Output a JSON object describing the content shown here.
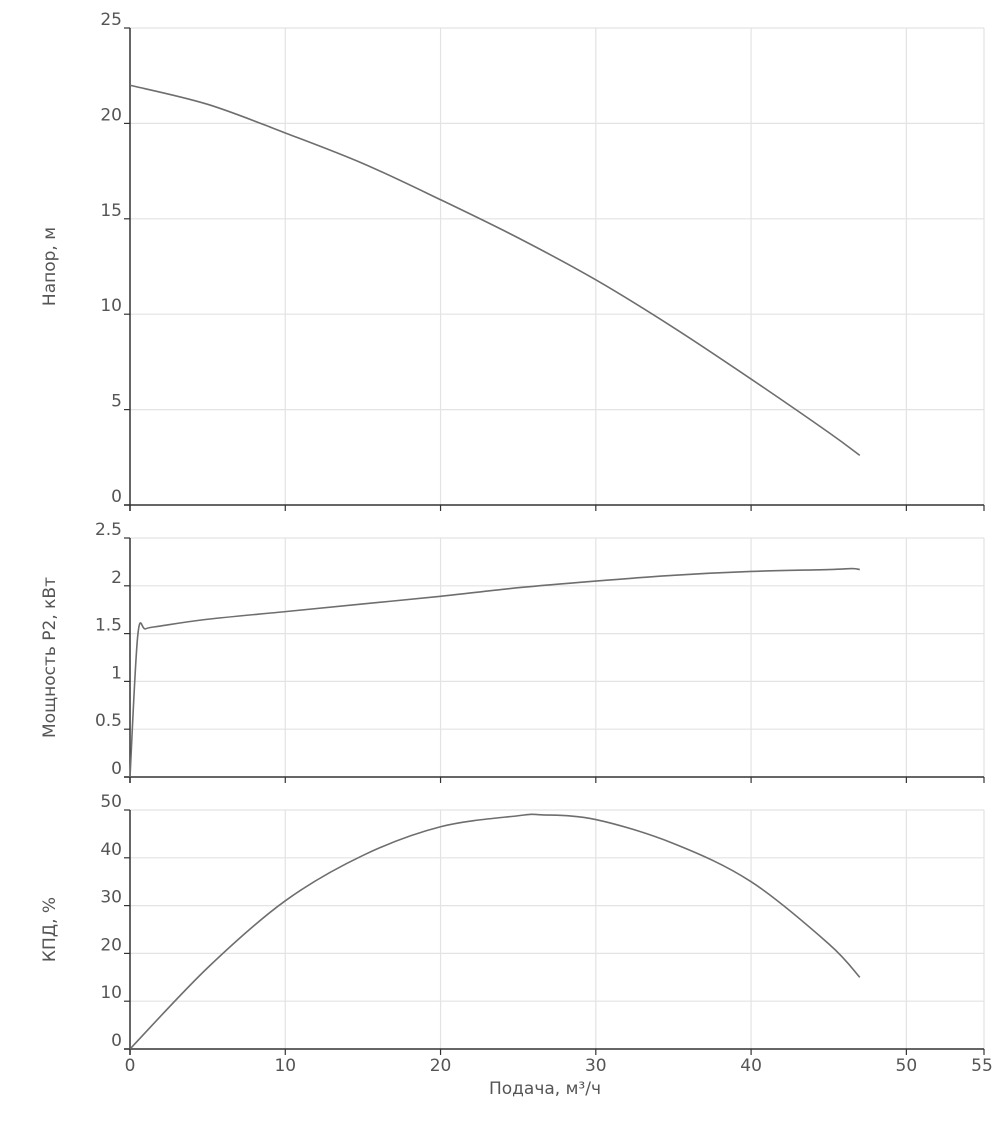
{
  "chart_data": [
    {
      "type": "line",
      "ylabel": "Напор, м",
      "xlim": [
        0,
        55
      ],
      "ylim": [
        0,
        25
      ],
      "xticks": [
        0,
        10,
        20,
        30,
        40,
        50,
        55
      ],
      "yticks": [
        0,
        5,
        10,
        15,
        20,
        25
      ],
      "grid": true,
      "line_color": "#6e6e6e",
      "series": [
        {
          "x": [
            0,
            5,
            10,
            15,
            20,
            25,
            30,
            35,
            40,
            45,
            47
          ],
          "y": [
            22.0,
            21.0,
            19.5,
            17.9,
            16.0,
            14.0,
            11.8,
            9.3,
            6.6,
            3.8,
            2.6
          ]
        }
      ]
    },
    {
      "type": "line",
      "ylabel": "Мощность P2, кВт",
      "xlim": [
        0,
        55
      ],
      "ylim": [
        0,
        2.5
      ],
      "xticks": [
        0,
        10,
        20,
        30,
        40,
        50,
        55
      ],
      "yticks": [
        0,
        0.5,
        1,
        1.5,
        2,
        2.5
      ],
      "grid": true,
      "line_color": "#6e6e6e",
      "series": [
        {
          "x": [
            0,
            0.5,
            1,
            2,
            5,
            10,
            15,
            20,
            25,
            30,
            35,
            40,
            45,
            46.5,
            47
          ],
          "y": [
            0,
            1.48,
            1.55,
            1.58,
            1.65,
            1.73,
            1.81,
            1.89,
            1.98,
            2.05,
            2.11,
            2.15,
            2.17,
            2.18,
            2.17
          ]
        }
      ]
    },
    {
      "type": "line",
      "ylabel": "КПД, %",
      "xlabel": "Подача, м³/ч",
      "xlim": [
        0,
        55
      ],
      "ylim": [
        0,
        50
      ],
      "xticks": [
        0,
        10,
        20,
        30,
        40,
        50,
        55
      ],
      "yticks": [
        0,
        10,
        20,
        30,
        40,
        50
      ],
      "grid": true,
      "line_color": "#6e6e6e",
      "series": [
        {
          "x": [
            0,
            5,
            10,
            15,
            20,
            25,
            26.5,
            30,
            35,
            40,
            45,
            47
          ],
          "y": [
            0,
            17,
            31,
            40.5,
            46.5,
            48.8,
            49,
            48,
            43,
            35,
            22,
            15
          ]
        }
      ]
    }
  ]
}
